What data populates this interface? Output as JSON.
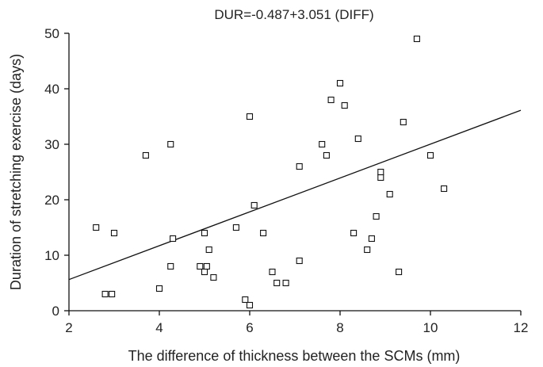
{
  "chart_data": {
    "type": "scatter",
    "title": "DUR=-0.487+3.051 (DIFF)",
    "xlabel": "The difference of thickness between the SCMs (mm)",
    "ylabel": "Duration of stretching exercise (days)",
    "xlim": [
      2,
      12
    ],
    "ylim": [
      0,
      50
    ],
    "xticks": [
      2,
      4,
      6,
      8,
      10,
      12
    ],
    "yticks": [
      0,
      10,
      20,
      30,
      40,
      50
    ],
    "grid": false,
    "legend": "none",
    "marker": "open-square",
    "regression": {
      "intercept": -0.487,
      "slope": 3.051
    },
    "points": [
      [
        2.6,
        15
      ],
      [
        2.8,
        3
      ],
      [
        2.95,
        3
      ],
      [
        3.0,
        14
      ],
      [
        3.7,
        28
      ],
      [
        4.0,
        4
      ],
      [
        4.25,
        30
      ],
      [
        4.25,
        8
      ],
      [
        4.3,
        13
      ],
      [
        4.9,
        8
      ],
      [
        5.0,
        14
      ],
      [
        5.0,
        7
      ],
      [
        5.05,
        8
      ],
      [
        5.1,
        11
      ],
      [
        5.2,
        6
      ],
      [
        5.7,
        15
      ],
      [
        5.9,
        2
      ],
      [
        6.0,
        35
      ],
      [
        6.0,
        1
      ],
      [
        6.1,
        19
      ],
      [
        6.3,
        14
      ],
      [
        6.5,
        7
      ],
      [
        6.6,
        5
      ],
      [
        6.8,
        5
      ],
      [
        7.1,
        26
      ],
      [
        7.1,
        9
      ],
      [
        7.6,
        30
      ],
      [
        7.7,
        28
      ],
      [
        7.8,
        38
      ],
      [
        8.0,
        41
      ],
      [
        8.1,
        37
      ],
      [
        8.3,
        14
      ],
      [
        8.4,
        31
      ],
      [
        8.6,
        11
      ],
      [
        8.7,
        13
      ],
      [
        8.8,
        17
      ],
      [
        8.9,
        25
      ],
      [
        8.9,
        24
      ],
      [
        9.1,
        21
      ],
      [
        9.3,
        7
      ],
      [
        9.4,
        34
      ],
      [
        9.7,
        49
      ],
      [
        10.0,
        28
      ],
      [
        10.3,
        22
      ]
    ]
  }
}
